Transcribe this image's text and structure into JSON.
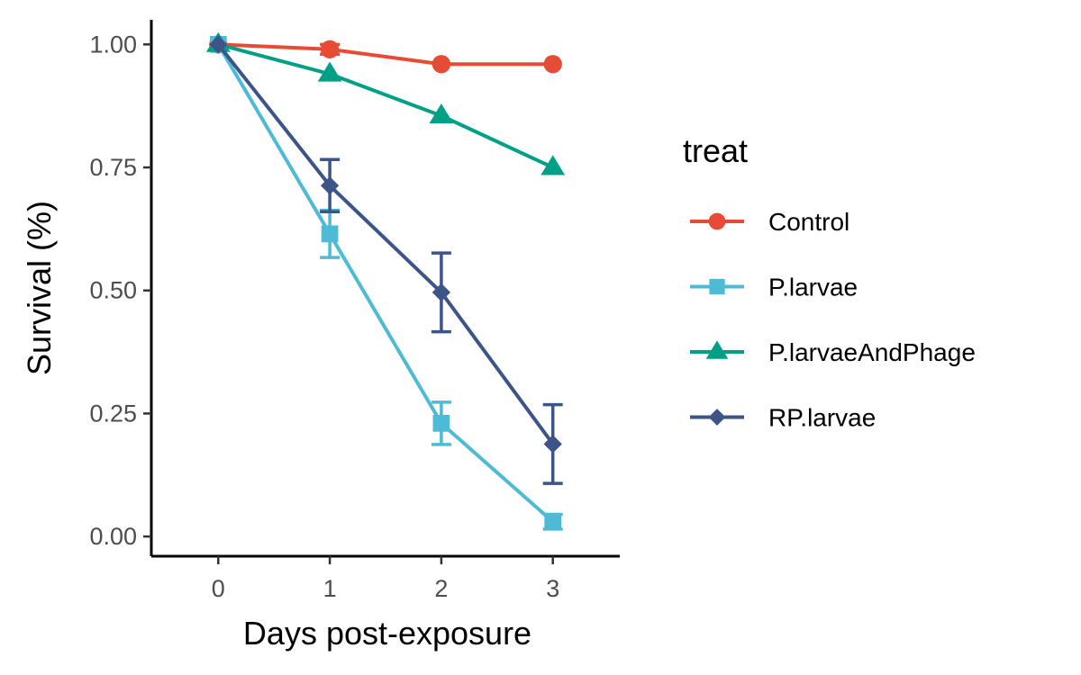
{
  "chart_data": {
    "type": "line",
    "xlabel": "Days post-exposure",
    "ylabel": "Survival (%)",
    "x": [
      0,
      1,
      2,
      3
    ],
    "x_ticks": [
      "0",
      "1",
      "2",
      "3"
    ],
    "y_ticks": [
      "0.00",
      "0.25",
      "0.50",
      "0.75",
      "1.00"
    ],
    "xlim": [
      -0.6,
      3.6
    ],
    "ylim": [
      -0.04,
      1.05
    ],
    "grid": false,
    "legend": {
      "title": "treat",
      "placement": "right"
    },
    "series": [
      {
        "name": "Control",
        "color": "#E64B35",
        "marker": "circle",
        "values": [
          1.0,
          0.99,
          0.96,
          0.96
        ],
        "err": [
          0,
          0.01,
          0,
          0
        ]
      },
      {
        "name": "P.larvae",
        "color": "#4DBBD5",
        "marker": "square",
        "values": [
          1.0,
          0.615,
          0.23,
          0.03
        ],
        "err": [
          0,
          0.048,
          0.043,
          0.015
        ]
      },
      {
        "name": "P.larvaeAndPhage",
        "color": "#00A087",
        "marker": "triangle",
        "values": [
          1.0,
          0.94,
          0.855,
          0.75
        ],
        "err": [
          0,
          0,
          0,
          0
        ]
      },
      {
        "name": "RP.larvae",
        "color": "#3C5488",
        "marker": "diamond",
        "values": [
          1.0,
          0.713,
          0.496,
          0.188
        ],
        "err": [
          0,
          0.053,
          0.08,
          0.08
        ]
      }
    ]
  }
}
